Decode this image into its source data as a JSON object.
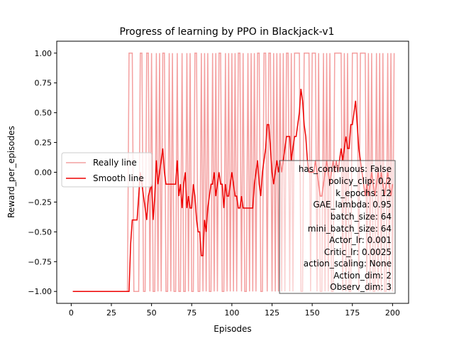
{
  "chart_data": {
    "type": "line",
    "title": "Progress of learning by PPO in Blackjack-v1",
    "xlabel": "Episodes",
    "ylabel": "Reward_per_episodes",
    "xlim": [
      -9,
      210
    ],
    "ylim": [
      -1.1,
      1.1
    ],
    "x_ticks": [
      0,
      25,
      50,
      75,
      100,
      125,
      150,
      175,
      200
    ],
    "x_tick_labels": [
      "0",
      "25",
      "50",
      "75",
      "100",
      "125",
      "150",
      "175",
      "200"
    ],
    "y_ticks": [
      -1.0,
      -0.75,
      -0.5,
      -0.25,
      0.0,
      0.25,
      0.5,
      0.75,
      1.0
    ],
    "y_tick_labels": [
      "−1.00",
      "−0.75",
      "−0.50",
      "−0.25",
      "0.00",
      "0.25",
      "0.50",
      "0.75",
      "1.00"
    ],
    "grid": false,
    "legend": {
      "placement": "center-left"
    },
    "series": [
      {
        "name": "Really line",
        "color": "#f4a0a0",
        "x_start": 1,
        "values": [
          -1,
          -1,
          -1,
          -1,
          -1,
          -1,
          -1,
          -1,
          -1,
          -1,
          -1,
          -1,
          -1,
          -1,
          -1,
          -1,
          -1,
          -1,
          -1,
          -1,
          -1,
          -1,
          -1,
          -1,
          -1,
          -1,
          -1,
          -1,
          -1,
          -1,
          -1,
          -1,
          -1,
          -1,
          -1,
          1,
          1,
          1,
          -1,
          -1,
          -1,
          -1,
          1,
          1,
          -1,
          -1,
          1,
          1,
          -1,
          1,
          -1,
          -1,
          1,
          -1,
          1,
          -1,
          1,
          1,
          -1,
          -1,
          1,
          -1,
          1,
          -1,
          -1,
          1,
          -1,
          -1,
          1,
          -1,
          -1,
          1,
          -1,
          1,
          -1,
          -1,
          1,
          1,
          -1,
          -1,
          1,
          -1,
          1,
          -1,
          1,
          -1,
          -1,
          1,
          -1,
          1,
          -1,
          1,
          1,
          -1,
          -1,
          1,
          -1,
          1,
          -1,
          1,
          -1,
          1,
          -1,
          1,
          1,
          -1,
          1,
          -1,
          -1,
          1,
          -1,
          1,
          -1,
          1,
          -1,
          1,
          1,
          -1,
          -1,
          1,
          1,
          -1,
          1,
          1,
          -1,
          1,
          -1,
          1,
          -1,
          1,
          -1,
          1,
          -1,
          1,
          1,
          -1,
          1,
          -1,
          1,
          1,
          1,
          1,
          -1,
          -1,
          1,
          1,
          1,
          1,
          -1,
          1,
          1,
          1,
          -1,
          1,
          -1,
          -1,
          1,
          -1,
          1,
          -1,
          1,
          -1,
          -1,
          1,
          1,
          1,
          1,
          1,
          -1,
          1,
          -1,
          1,
          -1,
          -1,
          1,
          1,
          1,
          1,
          -1,
          1,
          1,
          1,
          1,
          -1,
          1,
          -1,
          1,
          -1,
          -1,
          1,
          -1,
          1,
          -1,
          1,
          -1,
          -1,
          1,
          -1,
          1,
          -1,
          1
        ]
      },
      {
        "name": "Smooth line",
        "color": "#ee0000",
        "points": [
          [
            1,
            -1
          ],
          [
            36,
            -1
          ],
          [
            37,
            -0.6
          ],
          [
            38,
            -0.4
          ],
          [
            41,
            -0.4
          ],
          [
            42,
            -0.2
          ],
          [
            43,
            0
          ],
          [
            44,
            -0.1
          ],
          [
            46,
            -0.3
          ],
          [
            47,
            -0.4
          ],
          [
            48,
            -0.2
          ],
          [
            50,
            -0.1
          ],
          [
            51,
            -0.4
          ],
          [
            52,
            -0.2
          ],
          [
            53,
            0.1
          ],
          [
            54,
            -0.1
          ],
          [
            55,
            0
          ],
          [
            56,
            0.1
          ],
          [
            57,
            0.2
          ],
          [
            58,
            0
          ],
          [
            59,
            -0.1
          ],
          [
            65,
            -0.1
          ],
          [
            66,
            0.1
          ],
          [
            67,
            -0.2
          ],
          [
            68,
            -0.1
          ],
          [
            69,
            -0.3
          ],
          [
            70,
            -0.1
          ],
          [
            71,
            0
          ],
          [
            72,
            -0.3
          ],
          [
            73,
            -0.2
          ],
          [
            74,
            -0.3
          ],
          [
            75,
            -0.3
          ],
          [
            76,
            -0.1
          ],
          [
            77,
            -0.2
          ],
          [
            78,
            -0.4
          ],
          [
            79,
            -0.5
          ],
          [
            80,
            -0.5
          ],
          [
            81,
            -0.7
          ],
          [
            82,
            -0.7
          ],
          [
            83,
            -0.4
          ],
          [
            84,
            -0.5
          ],
          [
            85,
            -0.3
          ],
          [
            86,
            -0.2
          ],
          [
            87,
            -0.1
          ],
          [
            88,
            -0.1
          ],
          [
            89,
            0
          ],
          [
            90,
            -0.2
          ],
          [
            91,
            -0.1
          ],
          [
            92,
            0
          ],
          [
            93,
            -0.1
          ],
          [
            94,
            -0.1
          ],
          [
            95,
            -0.3
          ],
          [
            96,
            -0.1
          ],
          [
            97,
            -0.2
          ],
          [
            98,
            -0.2
          ],
          [
            99,
            -0.1
          ],
          [
            100,
            0
          ],
          [
            101,
            -0.1
          ],
          [
            102,
            -0.2
          ],
          [
            103,
            -0.2
          ],
          [
            104,
            -0.3
          ],
          [
            105,
            -0.3
          ],
          [
            106,
            -0.2
          ],
          [
            107,
            -0.3
          ],
          [
            113,
            -0.3
          ],
          [
            114,
            -0.1
          ],
          [
            115,
            0
          ],
          [
            116,
            0.1
          ],
          [
            117,
            -0.1
          ],
          [
            118,
            -0.2
          ],
          [
            119,
            0
          ],
          [
            120,
            0.1
          ],
          [
            121,
            0.2
          ],
          [
            122,
            0.4
          ],
          [
            123,
            0.4
          ],
          [
            124,
            0.2
          ],
          [
            125,
            0
          ],
          [
            126,
            -0.1
          ],
          [
            127,
            0
          ],
          [
            128,
            0.1
          ],
          [
            129,
            0
          ],
          [
            130,
            0.1
          ],
          [
            131,
            0
          ],
          [
            132,
            0.1
          ],
          [
            133,
            0.2
          ],
          [
            134,
            0.3
          ],
          [
            136,
            0.3
          ],
          [
            137,
            0.1
          ],
          [
            138,
            0.2
          ],
          [
            139,
            0.3
          ],
          [
            140,
            0.3
          ],
          [
            141,
            0.4
          ],
          [
            142,
            0.5
          ],
          [
            143,
            0.7
          ],
          [
            144,
            0.6
          ],
          [
            145,
            0.4
          ],
          [
            146,
            0.3
          ],
          [
            147,
            0.1
          ],
          [
            148,
            0
          ],
          [
            149,
            0
          ],
          [
            151,
            0
          ],
          [
            152,
            0.1
          ],
          [
            153,
            0
          ],
          [
            154,
            -0.1
          ],
          [
            155,
            -0.2
          ],
          [
            156,
            -0.2
          ],
          [
            157,
            -0.1
          ],
          [
            158,
            0
          ],
          [
            159,
            0.1
          ],
          [
            160,
            0
          ],
          [
            161,
            -0.1
          ],
          [
            162,
            0
          ],
          [
            163,
            0.1
          ],
          [
            164,
            0
          ],
          [
            165,
            0.1
          ],
          [
            166,
            0
          ],
          [
            167,
            0.1
          ],
          [
            168,
            0.2
          ],
          [
            169,
            0.1
          ],
          [
            170,
            0.2
          ],
          [
            171,
            0.3
          ],
          [
            172,
            0.2
          ],
          [
            173,
            0.2
          ],
          [
            174,
            0.4
          ],
          [
            175,
            0.4
          ],
          [
            176,
            0.5
          ],
          [
            177,
            0.6
          ],
          [
            178,
            0.4
          ],
          [
            179,
            0.2
          ],
          [
            180,
            0.1
          ],
          [
            181,
            0
          ],
          [
            182,
            -0.1
          ],
          [
            183,
            -0.2
          ],
          [
            184,
            -0.1
          ],
          [
            185,
            -0.2
          ],
          [
            186,
            -0.1
          ],
          [
            187,
            0
          ],
          [
            188,
            -0.1
          ],
          [
            189,
            -0.2
          ],
          [
            190,
            -0.1
          ],
          [
            191,
            0
          ],
          [
            192,
            -0.1
          ],
          [
            193,
            0
          ],
          [
            194,
            -0.1
          ],
          [
            195,
            -0.2
          ],
          [
            196,
            -0.1
          ],
          [
            197,
            0
          ],
          [
            198,
            -0.1
          ],
          [
            199,
            -0.2
          ],
          [
            200,
            -0.1
          ]
        ]
      }
    ],
    "annotation_box": {
      "placement": "lower-right",
      "lines": [
        "has_continuous: False",
        "policy_clip: 0.2",
        "k_epochs: 12",
        "GAE_lambda: 0.95",
        "batch_size: 64",
        "mini_batch_size: 64",
        "Actor_lr: 0.001",
        "Critic_lr: 0.0025",
        "action_scaling: None",
        "Action_dim: 2",
        "Observ_dim: 3"
      ]
    }
  }
}
